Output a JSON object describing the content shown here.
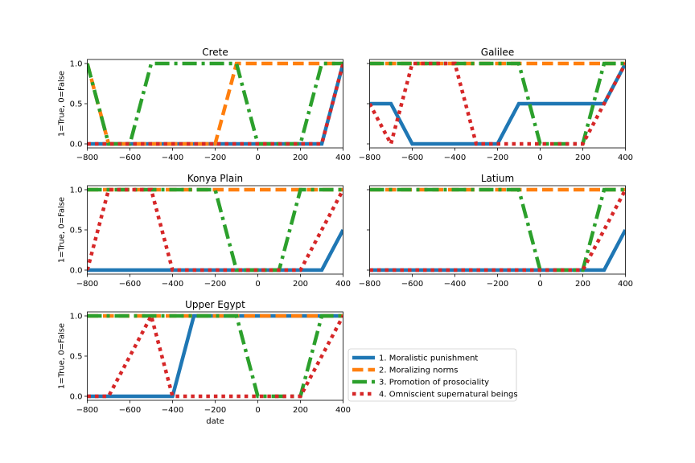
{
  "chart_data": {
    "type": "line",
    "xlabel": "date",
    "ylabel": "1=True, 0=False",
    "xlim": [
      -800,
      400
    ],
    "ylim": [
      -0.05,
      1.05
    ],
    "xticks": [
      -800,
      -600,
      -400,
      -200,
      0,
      200,
      400
    ],
    "xtick_labels": [
      "−800",
      "−600",
      "−400",
      "−200",
      "0",
      "200",
      "400"
    ],
    "yticks": [
      0,
      0.5,
      1
    ],
    "ytick_labels": [
      "0.0",
      "0.5",
      "1.0"
    ],
    "grid": false,
    "legend_location": "right of bottom-left panel",
    "series_styles": [
      {
        "name": "1. Moralistic punishment",
        "color": "#1f77b4",
        "dash": "solid"
      },
      {
        "name": "2. Moralizing norms",
        "color": "#ff7f0e",
        "dash": "dashed"
      },
      {
        "name": "3. Promotion of prosociality",
        "color": "#2ca02c",
        "dash": "dashdot"
      },
      {
        "name": "4. Omniscient supernatural beings",
        "color": "#d62728",
        "dash": "dotted"
      }
    ],
    "panels": [
      {
        "title": "Crete",
        "series": [
          {
            "x": [
              -800,
              -700,
              -600,
              -500,
              -400,
              -300,
              -200,
              -100,
              0,
              100,
              200,
              300,
              400
            ],
            "values": [
              0,
              0,
              0,
              0,
              0,
              0,
              0,
              0,
              0,
              0,
              0,
              0,
              1
            ]
          },
          {
            "x": [
              -800,
              -700,
              -600,
              -500,
              -400,
              -300,
              -200,
              -100,
              0,
              100,
              200,
              300,
              400
            ],
            "values": [
              1,
              0,
              0,
              0,
              0,
              0,
              0,
              1,
              1,
              1,
              1,
              1,
              1
            ]
          },
          {
            "x": [
              -800,
              -700,
              -600,
              -500,
              -400,
              -300,
              -200,
              -100,
              0,
              100,
              200,
              300,
              400
            ],
            "values": [
              1,
              0,
              0,
              1,
              1,
              1,
              1,
              1,
              0,
              0,
              0,
              1,
              1
            ]
          },
          {
            "x": [
              -800,
              -700,
              -600,
              -500,
              -400,
              -300,
              -200,
              -100,
              0,
              100,
              200,
              300,
              400
            ],
            "values": [
              0,
              0,
              0,
              0,
              0,
              0,
              0,
              0,
              0,
              0,
              0,
              0,
              1
            ]
          }
        ]
      },
      {
        "title": "Galilee",
        "series": [
          {
            "x": [
              -800,
              -700,
              -600,
              -500,
              -400,
              -300,
              -200,
              -100,
              0,
              100,
              200,
              300,
              400
            ],
            "values": [
              0.5,
              0.5,
              0,
              0,
              0,
              0,
              0,
              0.5,
              0.5,
              0.5,
              0.5,
              0.5,
              1
            ]
          },
          {
            "x": [
              -800,
              -700,
              -600,
              -500,
              -400,
              -300,
              -200,
              -100,
              0,
              100,
              200,
              300,
              400
            ],
            "values": [
              1,
              1,
              1,
              1,
              1,
              1,
              1,
              1,
              1,
              1,
              1,
              1,
              1
            ]
          },
          {
            "x": [
              -800,
              -700,
              -600,
              -500,
              -400,
              -300,
              -200,
              -100,
              0,
              100,
              200,
              300,
              400
            ],
            "values": [
              1,
              1,
              1,
              1,
              1,
              1,
              1,
              1,
              0,
              0,
              0,
              1,
              1
            ]
          },
          {
            "x": [
              -800,
              -700,
              -600,
              -500,
              -400,
              -300,
              -200,
              -100,
              0,
              100,
              200,
              300,
              400
            ],
            "values": [
              0.5,
              0,
              1,
              1,
              1,
              0,
              0,
              0,
              0,
              0,
              0,
              0.5,
              1
            ]
          }
        ]
      },
      {
        "title": "Konya Plain",
        "series": [
          {
            "x": [
              -800,
              -700,
              -600,
              -500,
              -400,
              -300,
              -200,
              -100,
              0,
              100,
              200,
              300,
              400
            ],
            "values": [
              0,
              0,
              0,
              0,
              0,
              0,
              0,
              0,
              0,
              0,
              0,
              0,
              0.5
            ]
          },
          {
            "x": [
              -800,
              -700,
              -600,
              -500,
              -400,
              -300,
              -200,
              -100,
              0,
              100,
              200,
              300,
              400
            ],
            "values": [
              1,
              1,
              1,
              1,
              1,
              1,
              1,
              1,
              1,
              1,
              1,
              1,
              1
            ]
          },
          {
            "x": [
              -800,
              -700,
              -600,
              -500,
              -400,
              -300,
              -200,
              -100,
              0,
              100,
              200,
              300,
              400
            ],
            "values": [
              1,
              1,
              1,
              1,
              1,
              1,
              1,
              0,
              0,
              0,
              1,
              1,
              1
            ]
          },
          {
            "x": [
              -800,
              -700,
              -600,
              -500,
              -400,
              -300,
              -200,
              -100,
              0,
              100,
              200,
              300,
              400
            ],
            "values": [
              0,
              1,
              1,
              1,
              0,
              0,
              0,
              0,
              0,
              0,
              0,
              0.5,
              1
            ]
          }
        ]
      },
      {
        "title": "Latium",
        "series": [
          {
            "x": [
              -800,
              -700,
              -600,
              -500,
              -400,
              -300,
              -200,
              -100,
              0,
              100,
              200,
              300,
              400
            ],
            "values": [
              0,
              0,
              0,
              0,
              0,
              0,
              0,
              0,
              0,
              0,
              0,
              0,
              0.5
            ]
          },
          {
            "x": [
              -800,
              -700,
              -600,
              -500,
              -400,
              -300,
              -200,
              -100,
              0,
              100,
              200,
              300,
              400
            ],
            "values": [
              1,
              1,
              1,
              1,
              1,
              1,
              1,
              1,
              1,
              1,
              1,
              1,
              1
            ]
          },
          {
            "x": [
              -800,
              -700,
              -600,
              -500,
              -400,
              -300,
              -200,
              -100,
              0,
              100,
              200,
              300,
              400
            ],
            "values": [
              1,
              1,
              1,
              1,
              1,
              1,
              1,
              1,
              0,
              0,
              0,
              1,
              1
            ]
          },
          {
            "x": [
              -800,
              -700,
              -600,
              -500,
              -400,
              -300,
              -200,
              -100,
              0,
              100,
              200,
              300,
              400
            ],
            "values": [
              0,
              0,
              0,
              0,
              0,
              0,
              0,
              0,
              0,
              0,
              0,
              0.5,
              1
            ]
          }
        ]
      },
      {
        "title": "Upper Egypt",
        "series": [
          {
            "x": [
              -800,
              -700,
              -600,
              -500,
              -400,
              -300,
              -200,
              -100,
              0,
              100,
              200,
              300,
              400
            ],
            "values": [
              0,
              0,
              0,
              0,
              0,
              1,
              1,
              1,
              1,
              1,
              1,
              1,
              1
            ]
          },
          {
            "x": [
              -800,
              -700,
              -600,
              -500,
              -400,
              -300,
              -200,
              -100,
              0,
              100,
              200,
              300,
              400
            ],
            "values": [
              1,
              1,
              1,
              1,
              1,
              1,
              1,
              1,
              1,
              1,
              1,
              1,
              1
            ]
          },
          {
            "x": [
              -800,
              -700,
              -600,
              -500,
              -400,
              -300,
              -200,
              -100,
              0,
              100,
              200,
              300,
              400
            ],
            "values": [
              1,
              1,
              1,
              1,
              1,
              1,
              1,
              1,
              0,
              0,
              0,
              1,
              1
            ]
          },
          {
            "x": [
              -800,
              -700,
              -600,
              -500,
              -400,
              -300,
              -200,
              -100,
              0,
              100,
              200,
              300,
              400
            ],
            "values": [
              0,
              0,
              0.5,
              1,
              0,
              0,
              0,
              0,
              0,
              0,
              0,
              0.5,
              1
            ]
          }
        ]
      }
    ]
  }
}
